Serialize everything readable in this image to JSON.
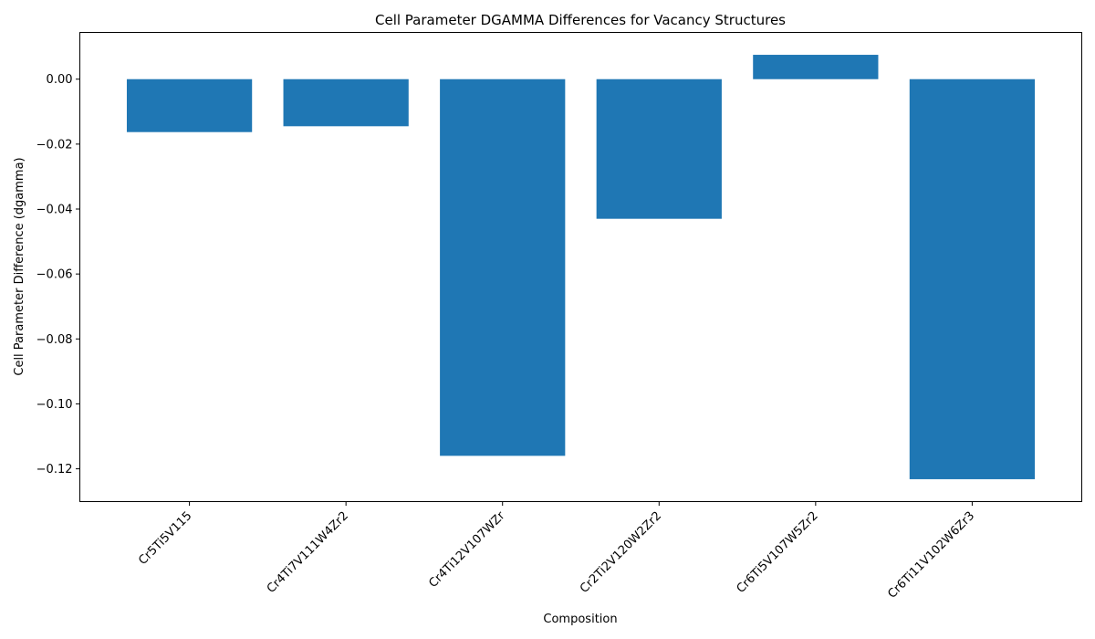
{
  "chart_data": {
    "type": "bar",
    "title": "Cell Parameter DGAMMA Differences for Vacancy Structures",
    "xlabel": "Composition",
    "ylabel": "Cell Parameter Difference (dgamma)",
    "categories": [
      "Cr5Ti5V115",
      "Cr4Ti7V111W4Zr2",
      "Cr4Ti12V107WZr",
      "Cr2Ti2V120W2Zr2",
      "Cr6Ti5V107W5Zr2",
      "Cr6Ti11V102W6Zr3"
    ],
    "values": [
      -0.0163,
      -0.0145,
      -0.116,
      -0.043,
      0.0075,
      -0.1232
    ],
    "ylim": [
      -0.1301,
      0.0144
    ],
    "yticks": [
      0.0,
      -0.02,
      -0.04,
      -0.06,
      -0.08,
      -0.1,
      -0.12
    ],
    "ytick_labels": [
      "0.00",
      "−0.02",
      "−0.04",
      "−0.06",
      "−0.08",
      "−0.10",
      "−0.12"
    ],
    "bar_color": "#1f77b4",
    "grid": false,
    "legend": false,
    "xtick_rotation_deg": 45
  }
}
